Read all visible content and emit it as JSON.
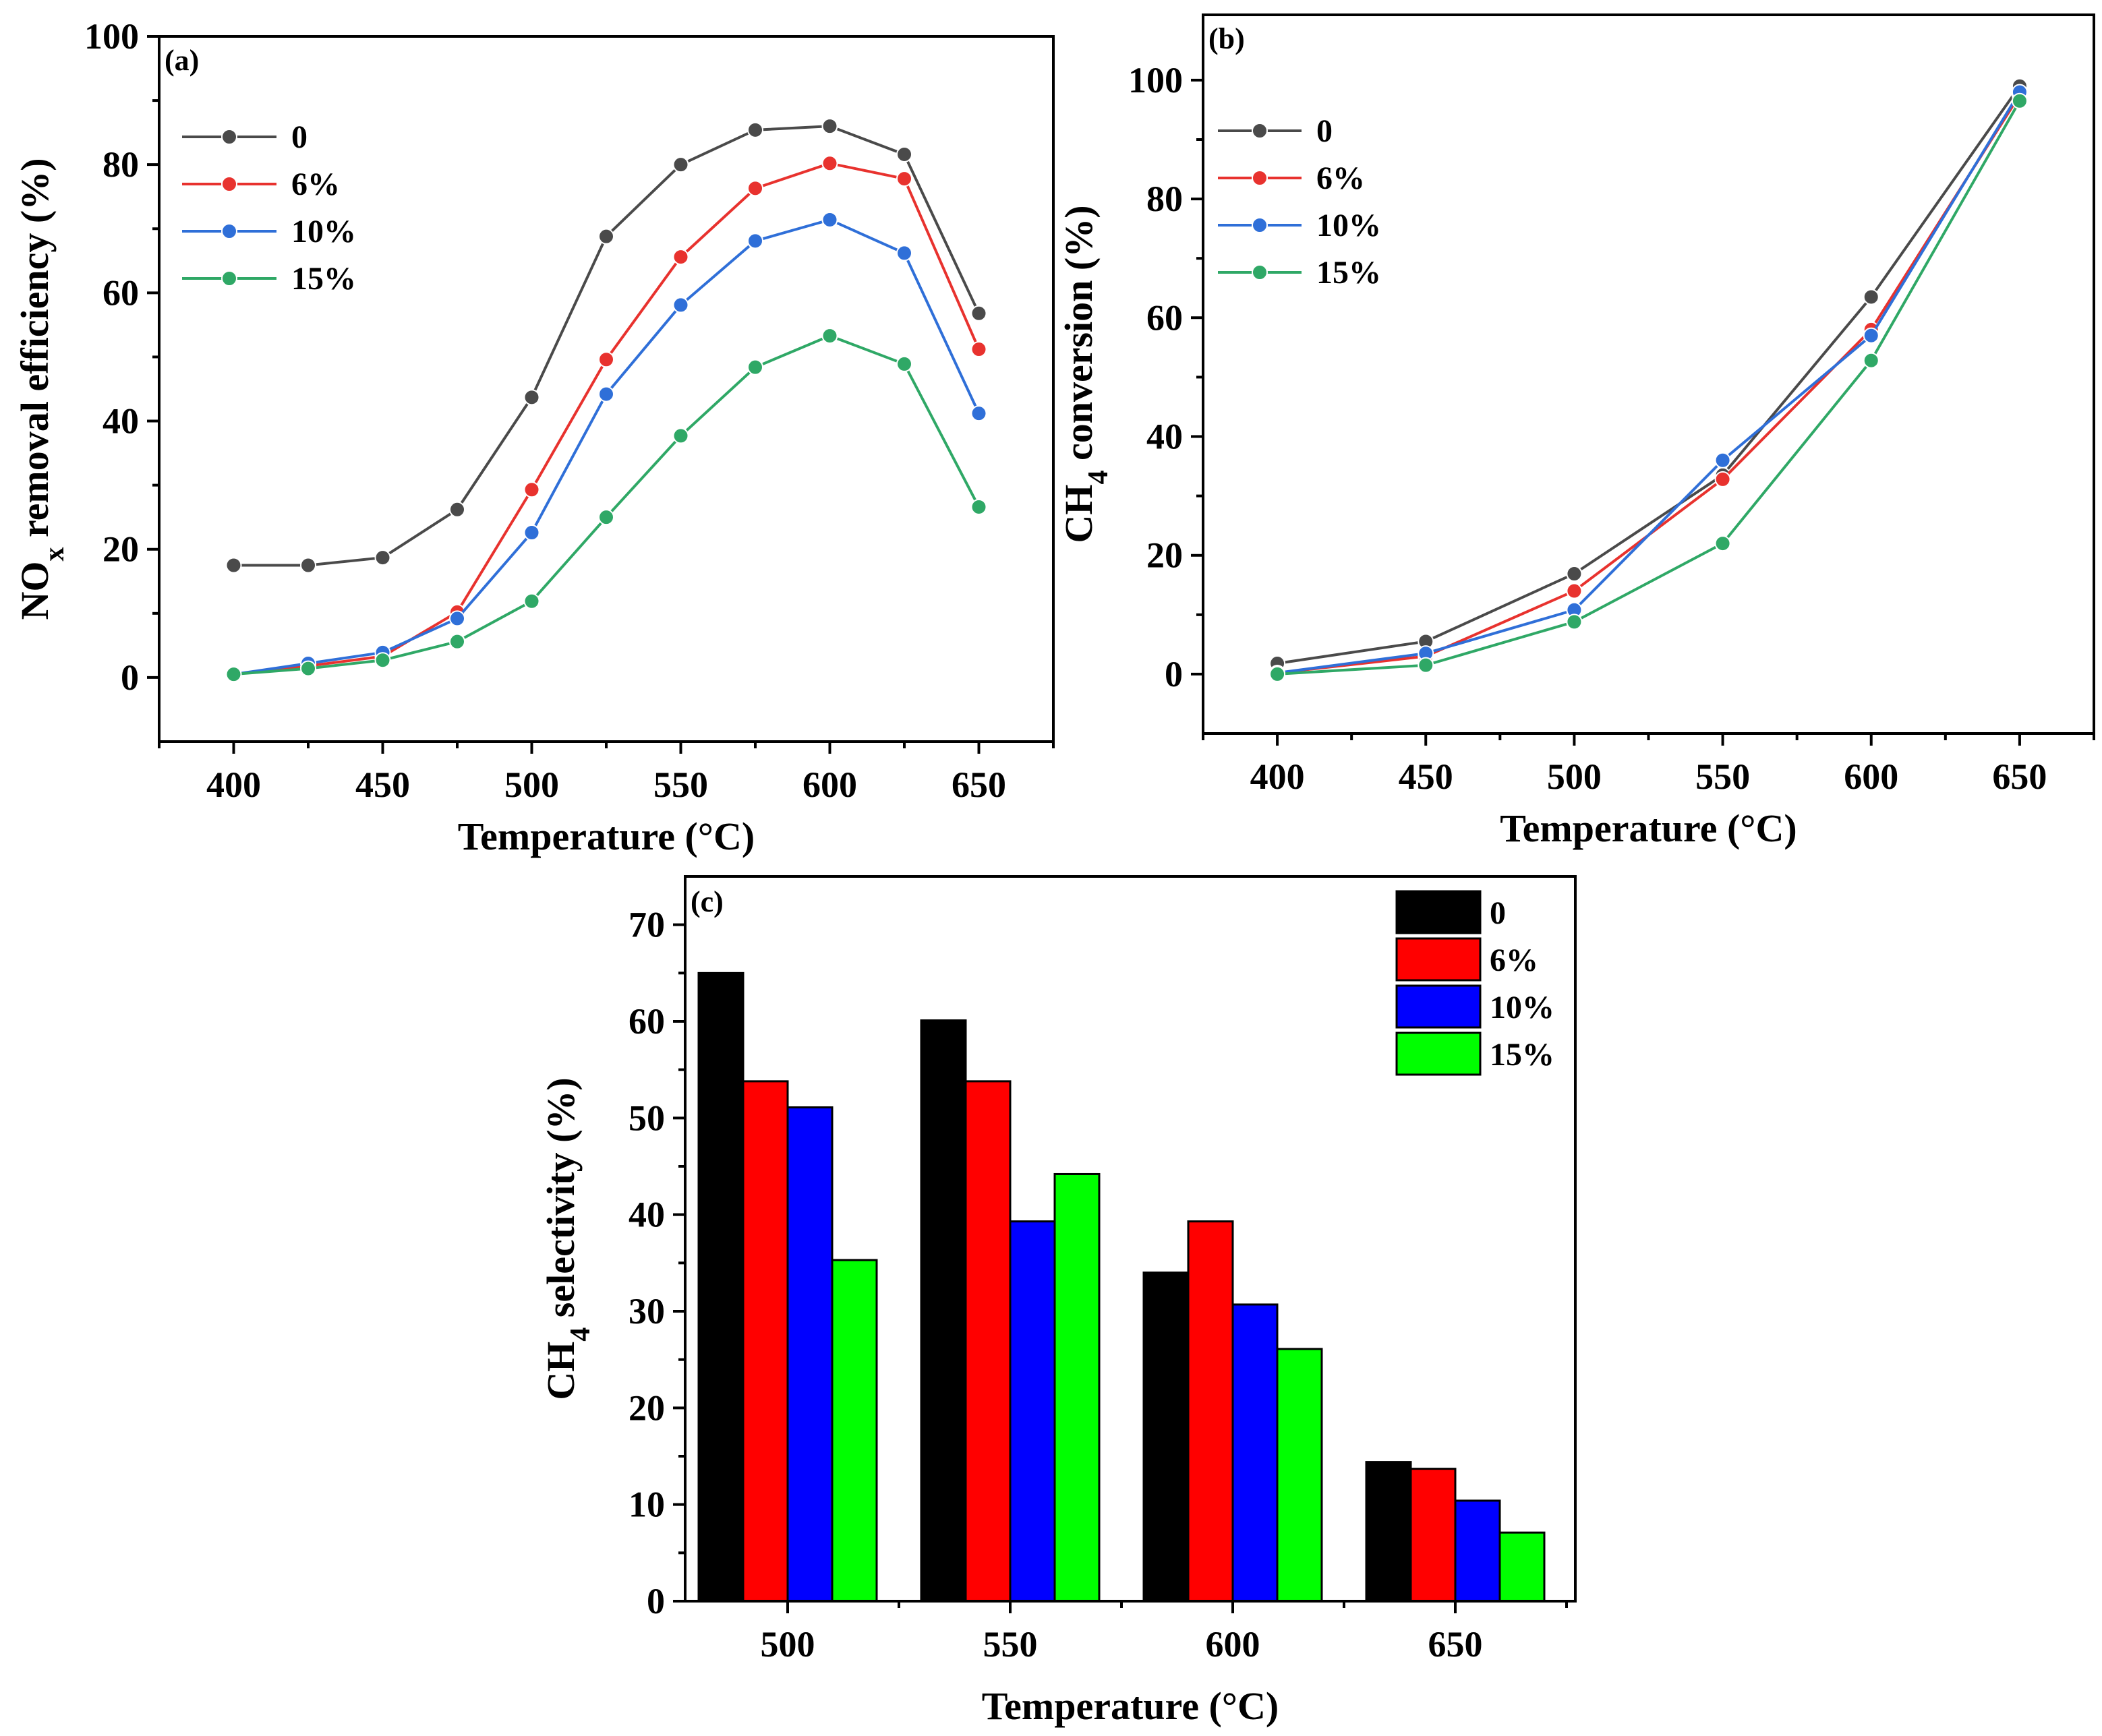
{
  "colors": {
    "line_0": "#4a4a4a",
    "line_6": "#e8322e",
    "line_10": "#2f6fd8",
    "line_15": "#2fa866",
    "bar_0": "#000000",
    "bar_6": "#ff0000",
    "bar_10": "#0000ff",
    "bar_15": "#00ff00"
  },
  "chart_data": [
    {
      "id": "a",
      "type": "line",
      "panel_label": "(a)",
      "title": "",
      "xlabel": "Temperature (°C)",
      "ylabel_main": "NO",
      "ylabel_sub": "x",
      "ylabel_rest": " removal efficiency (%)",
      "xlim": [
        375,
        675
      ],
      "ylim": [
        -10,
        100
      ],
      "xticks": [
        400,
        450,
        500,
        550,
        600,
        650
      ],
      "xtick_labels": [
        "400",
        "450",
        "500",
        "550",
        "600",
        "650"
      ],
      "yticks": [
        0,
        20,
        40,
        60,
        80,
        100
      ],
      "ytick_labels": [
        "0",
        "20",
        "40",
        "60",
        "80",
        "100"
      ],
      "legend_position": "top-left",
      "x": [
        400,
        425,
        450,
        475,
        500,
        525,
        550,
        575,
        600,
        625,
        650
      ],
      "series": [
        {
          "name": "0",
          "values": [
            17.5,
            17.5,
            18.7,
            26.2,
            43.7,
            68.8,
            80.0,
            85.4,
            86.0,
            81.6,
            56.8
          ]
        },
        {
          "name": "6%",
          "values": [
            0.5,
            1.8,
            3.3,
            10.2,
            29.3,
            49.6,
            65.6,
            76.3,
            80.2,
            77.8,
            51.2
          ]
        },
        {
          "name": "10%",
          "values": [
            0.5,
            2.2,
            3.9,
            9.2,
            22.6,
            44.2,
            58.1,
            68.1,
            71.4,
            66.2,
            41.2
          ]
        },
        {
          "name": "15%",
          "values": [
            0.5,
            1.4,
            2.7,
            5.6,
            11.9,
            25.0,
            37.7,
            48.4,
            53.3,
            48.9,
            26.6
          ]
        }
      ]
    },
    {
      "id": "b",
      "type": "line",
      "panel_label": "(b)",
      "title": "",
      "xlabel": "Temperature (°C)",
      "ylabel_main": "CH",
      "ylabel_sub": "4",
      "ylabel_rest": " conversion (%)",
      "xlim": [
        375,
        675
      ],
      "ylim": [
        -10,
        111
      ],
      "xticks": [
        400,
        450,
        500,
        550,
        600,
        650
      ],
      "xtick_labels": [
        "400",
        "450",
        "500",
        "550",
        "600",
        "650"
      ],
      "yticks": [
        0,
        20,
        40,
        60,
        80,
        100
      ],
      "ytick_labels": [
        "0",
        "20",
        "40",
        "60",
        "80",
        "100"
      ],
      "legend_position": "top-left",
      "x": [
        400,
        450,
        500,
        550,
        600,
        650
      ],
      "series": [
        {
          "name": "0",
          "values": [
            1.8,
            5.5,
            16.9,
            33.5,
            63.5,
            99.0
          ]
        },
        {
          "name": "6%",
          "values": [
            0.2,
            3.0,
            14.0,
            32.8,
            58.0,
            97.5
          ]
        },
        {
          "name": "10%",
          "values": [
            0.2,
            3.5,
            10.8,
            36.0,
            57.0,
            98.0
          ]
        },
        {
          "name": "15%",
          "values": [
            0.0,
            1.5,
            8.8,
            22.0,
            52.8,
            96.5
          ]
        }
      ]
    },
    {
      "id": "c",
      "type": "bar",
      "panel_label": "(c)",
      "title": "",
      "xlabel": "Temperature (°C)",
      "ylabel_main": "CH",
      "ylabel_sub": "4",
      "ylabel_rest": " selectivity (%)",
      "ylim": [
        0,
        75
      ],
      "categories": [
        "500",
        "550",
        "600",
        "650"
      ],
      "yticks": [
        0,
        10,
        20,
        30,
        40,
        50,
        60,
        70
      ],
      "ytick_labels": [
        "0",
        "10",
        "20",
        "30",
        "40",
        "50",
        "60",
        "70"
      ],
      "legend_position": "top-right",
      "series": [
        {
          "name": "0",
          "values": [
            65.0,
            60.1,
            34.0,
            14.4
          ]
        },
        {
          "name": "6%",
          "values": [
            53.8,
            53.8,
            39.3,
            13.7
          ]
        },
        {
          "name": "10%",
          "values": [
            51.1,
            39.3,
            30.7,
            10.4
          ]
        },
        {
          "name": "15%",
          "values": [
            35.3,
            44.2,
            26.1,
            7.1
          ]
        }
      ]
    }
  ]
}
